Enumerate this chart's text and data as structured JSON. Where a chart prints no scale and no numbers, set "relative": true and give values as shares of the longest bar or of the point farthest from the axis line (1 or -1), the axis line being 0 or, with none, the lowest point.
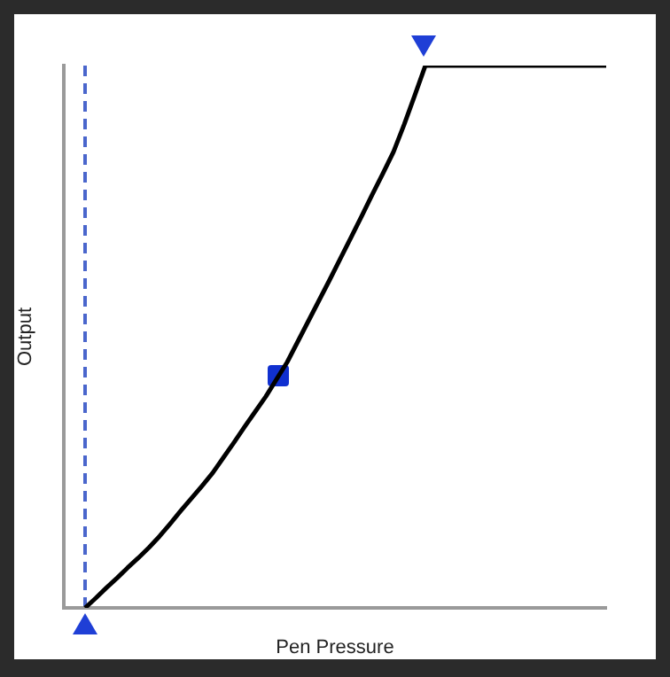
{
  "chart_data": {
    "type": "line",
    "xlabel": "Pen Pressure",
    "ylabel": "Output",
    "relative": true,
    "ylim": [
      0,
      1
    ],
    "legend": false,
    "categories": [
      null,
      null,
      null,
      null,
      null,
      null,
      null,
      null,
      null,
      null,
      null,
      null,
      null,
      null,
      null,
      null,
      null,
      null,
      null,
      null,
      null,
      null,
      null,
      null,
      null,
      null,
      null,
      null,
      null,
      null,
      null,
      null,
      null,
      null,
      null,
      null,
      null,
      null,
      null,
      null,
      null,
      null,
      null,
      null,
      null,
      null,
      null,
      null,
      null,
      null,
      null,
      null
    ],
    "series": [
      {
        "color": "#000000",
        "values": [
          null,
          null,
          0,
          0.018,
          0.037,
          0.055,
          0.074,
          0.092,
          0.111,
          0.132,
          0.155,
          0.179,
          0.202,
          0.225,
          0.249,
          0.277,
          0.305,
          0.334,
          0.362,
          0.39,
          null,
          0.453,
          0.491,
          0.529,
          0.567,
          0.605,
          0.644,
          0.683,
          0.722,
          0.762,
          0.801,
          0.841,
          0.891,
          0.945,
          1,
          1,
          1,
          1,
          1,
          1,
          1,
          1,
          1,
          1,
          1,
          1,
          1,
          1,
          1,
          1,
          1,
          1
        ]
      }
    ]
  }
}
